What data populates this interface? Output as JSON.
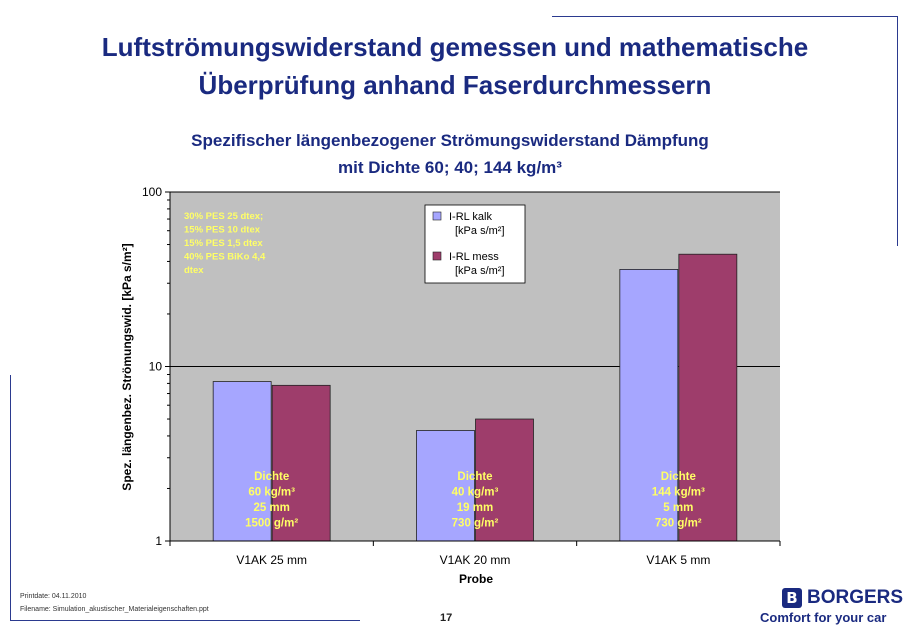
{
  "slide": {
    "title_line1": "Luftströmungswiderstand gemessen und mathematische",
    "title_line2": "Überprüfung anhand Faserdurchmessern",
    "printdate": "Printdate: 04.11.2010",
    "filename": "Filename: Simulation_akustischer_Materialeigenschaften.ppt",
    "page_number": "17",
    "brand_name": "BORGERS",
    "brand_slogan": "Comfort for your car",
    "brand_color": "#1a2a80"
  },
  "chart_data": {
    "type": "bar",
    "title_line1": "Spezifischer längenbezogener Strömungswiderstand Dämpfung",
    "title_line2": "mit Dichte 60; 40; 144 kg/m³",
    "xlabel": "Probe",
    "ylabel": "Spez. längenbez. Strömungswid. [kPa s/m²]",
    "y_scale": "log",
    "ylim": [
      1,
      100
    ],
    "y_ticks": [
      "1",
      "10",
      "100"
    ],
    "categories": [
      "V1AK 25 mm",
      "V1AK 20 mm",
      "V1AK 5 mm"
    ],
    "series": [
      {
        "name_line1": "I-RL kalk",
        "name_line2": "[kPa s/m²]",
        "color": "#a6a6ff",
        "values": [
          8.2,
          4.3,
          36
        ]
      },
      {
        "name_line1": "I-RL mess",
        "name_line2": "[kPa s/m²]",
        "color": "#9e3d6b",
        "values": [
          7.8,
          5.0,
          44
        ]
      }
    ],
    "category_annotations": [
      [
        "Dichte",
        "60 kg/m³",
        "25 mm",
        "1500 g/m²"
      ],
      [
        "Dichte",
        "40 kg/m³",
        "19 mm",
        "730 g/m²"
      ],
      [
        "Dichte",
        "144 kg/m³",
        "5 mm",
        "730 g/m²"
      ]
    ],
    "composition_note": [
      "30% PES 25 dtex;",
      "15% PES 10 dtex",
      "15% PES 1,5 dtex",
      "40% PES BiKo 4,4",
      "dtex"
    ],
    "plot_background": "#c0c0c0",
    "annotation_color": "#ffff66",
    "grid": "major-y",
    "legend_position": "top-center"
  }
}
